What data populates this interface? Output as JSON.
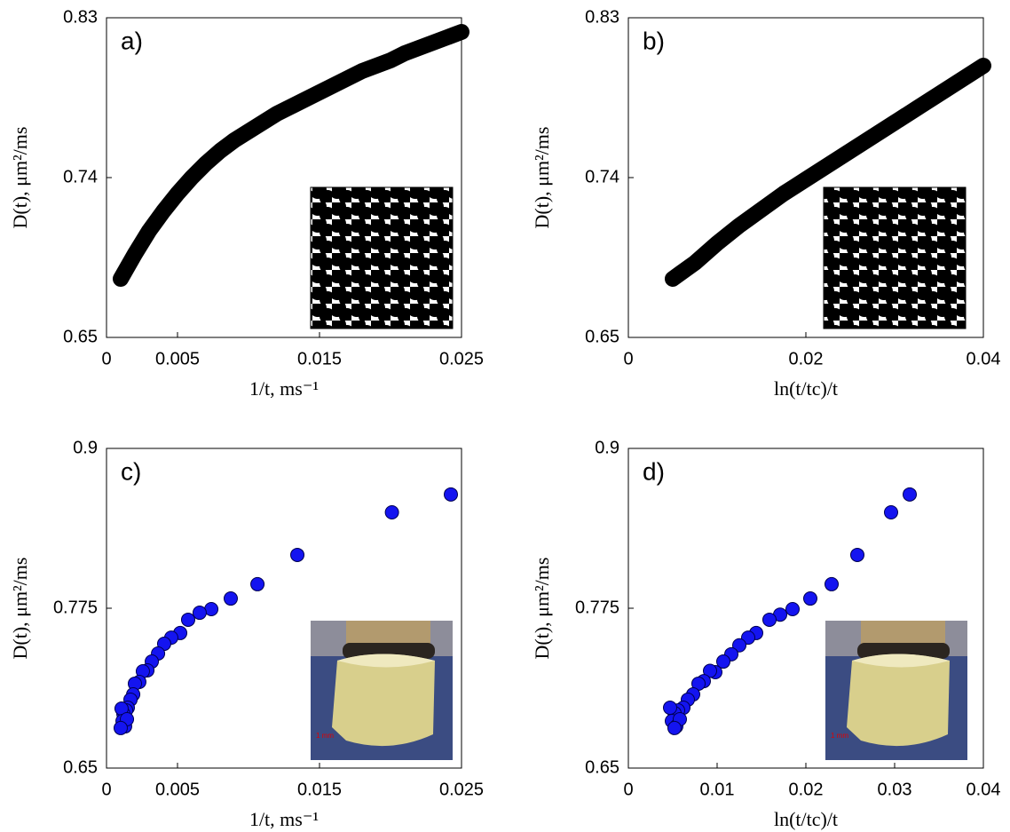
{
  "chart_data": [
    {
      "type": "line",
      "panel_label": "a)",
      "xlabel": "1/t, ms⁻¹",
      "ylabel": "D(t), μm²/ms",
      "color": "#000000",
      "x": [
        0.001,
        0.002,
        0.003,
        0.004,
        0.005,
        0.006,
        0.007,
        0.008,
        0.009,
        0.01,
        0.011,
        0.012,
        0.013,
        0.014,
        0.015,
        0.016,
        0.017,
        0.018,
        0.019,
        0.02,
        0.021,
        0.022,
        0.023,
        0.024,
        0.025
      ],
      "values": [
        0.683,
        0.697,
        0.71,
        0.721,
        0.731,
        0.74,
        0.748,
        0.755,
        0.761,
        0.766,
        0.771,
        0.776,
        0.78,
        0.784,
        0.788,
        0.792,
        0.796,
        0.8,
        0.803,
        0.806,
        0.81,
        0.813,
        0.816,
        0.819,
        0.822
      ],
      "xlim": [
        0,
        0.025
      ],
      "xticks": [
        0,
        0.005,
        0.015,
        0.025
      ],
      "ylim": [
        0.65,
        0.83
      ],
      "yticks": [
        0.65,
        0.74,
        0.83
      ]
    },
    {
      "type": "line",
      "panel_label": "b)",
      "xlabel": "ln(t/tc)/t",
      "ylabel": "D(t), μm²/ms",
      "color": "#000000",
      "x": [
        0.005,
        0.0075,
        0.01,
        0.0125,
        0.015,
        0.0175,
        0.02,
        0.0225,
        0.025,
        0.0275,
        0.03,
        0.0325,
        0.035,
        0.0375,
        0.04
      ],
      "values": [
        0.683,
        0.692,
        0.703,
        0.713,
        0.722,
        0.731,
        0.739,
        0.747,
        0.755,
        0.763,
        0.771,
        0.779,
        0.787,
        0.795,
        0.803
      ],
      "xlim": [
        0,
        0.04
      ],
      "xticks": [
        0,
        0.02,
        0.04
      ],
      "ylim": [
        0.65,
        0.83
      ],
      "yticks": [
        0.65,
        0.74,
        0.83
      ]
    },
    {
      "type": "scatter",
      "panel_label": "c)",
      "xlabel": "1/t, ms⁻¹",
      "ylabel": "D(t), μm²/ms",
      "color": "#1414f0",
      "x": [
        0.02425,
        0.0201,
        0.01344,
        0.01063,
        0.00875,
        0.00738,
        0.00656,
        0.00575,
        0.00519,
        0.00456,
        0.00406,
        0.00363,
        0.00319,
        0.00288,
        0.00256,
        0.00231,
        0.002,
        0.00188,
        0.00169,
        0.0015,
        0.00138,
        0.00119,
        0.00106,
        0.00113,
        0.00131,
        0.00144,
        0.001
      ],
      "values": [
        0.864,
        0.85,
        0.8167,
        0.7938,
        0.7826,
        0.7743,
        0.7715,
        0.766,
        0.7556,
        0.752,
        0.7472,
        0.7396,
        0.7333,
        0.7264,
        0.7257,
        0.7174,
        0.716,
        0.7076,
        0.7035,
        0.6972,
        0.6951,
        0.6924,
        0.6965,
        0.6868,
        0.6826,
        0.6882,
        0.6813
      ],
      "xlim": [
        0,
        0.025
      ],
      "xticks": [
        0,
        0.005,
        0.015,
        0.025
      ],
      "ylim": [
        0.65,
        0.9
      ],
      "yticks": [
        0.65,
        0.775,
        0.9
      ]
    },
    {
      "type": "scatter",
      "panel_label": "d)",
      "xlabel": "ln(t/tc)/t",
      "ylabel": "D(t), μm²/ms",
      "color": "#1414f0",
      "x": [
        0.0317,
        0.0296,
        0.0258,
        0.0229,
        0.0205,
        0.0185,
        0.0171,
        0.0159,
        0.0144,
        0.0135,
        0.0125,
        0.0116,
        0.0107,
        0.0098,
        0.0092,
        0.0085,
        0.0079,
        0.0073,
        0.0067,
        0.0062,
        0.0056,
        0.0052,
        0.0047,
        0.0049,
        0.0054,
        0.0058,
        0.0052
      ],
      "values": [
        0.864,
        0.85,
        0.8167,
        0.7938,
        0.7826,
        0.7743,
        0.77,
        0.766,
        0.7556,
        0.752,
        0.746,
        0.739,
        0.7333,
        0.725,
        0.726,
        0.718,
        0.716,
        0.7076,
        0.7035,
        0.6972,
        0.6951,
        0.693,
        0.6972,
        0.6868,
        0.6826,
        0.6882,
        0.6813
      ],
      "xlim": [
        0,
        0.04
      ],
      "xticks": [
        0,
        0.01,
        0.02,
        0.03,
        0.04
      ],
      "ylim": [
        0.65,
        0.9
      ],
      "yticks": [
        0.65,
        0.775,
        0.9
      ]
    }
  ]
}
